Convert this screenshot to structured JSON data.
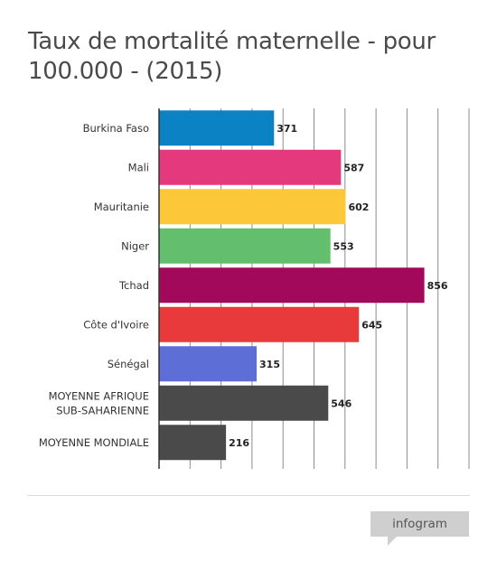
{
  "chart_data": {
    "type": "bar",
    "orientation": "horizontal",
    "title": "Taux de mortalité maternelle - pour 100.000 - (2015)",
    "categories": [
      "Burkina Faso",
      "Mali",
      "Mauritanie",
      "Niger",
      "Tchad",
      "Côte d'Ivoire",
      "Sénégal",
      "MOYENNE AFRIQUE SUB-SAHARIENNE",
      "MOYENNE MONDIALE"
    ],
    "category_lines": [
      [
        "Burkina Faso"
      ],
      [
        "Mali"
      ],
      [
        "Mauritanie"
      ],
      [
        "Niger"
      ],
      [
        "Tchad"
      ],
      [
        "Côte d'Ivoire"
      ],
      [
        "Sénégal"
      ],
      [
        "MOYENNE AFRIQUE",
        "SUB-SAHARIENNE"
      ],
      [
        "MOYENNE MONDIALE"
      ]
    ],
    "values": [
      371,
      587,
      602,
      553,
      856,
      645,
      315,
      546,
      216
    ],
    "colors": [
      "#0a82c3",
      "#e5397e",
      "#fdc73a",
      "#63bf6d",
      "#a3095b",
      "#e8393b",
      "#5d6ed7",
      "#4a4a4a",
      "#4a4a4a"
    ],
    "xlim": [
      0,
      1000
    ],
    "grid": true,
    "legend": "none",
    "data_labels": true
  },
  "branding": {
    "logo_text": "infogram"
  }
}
